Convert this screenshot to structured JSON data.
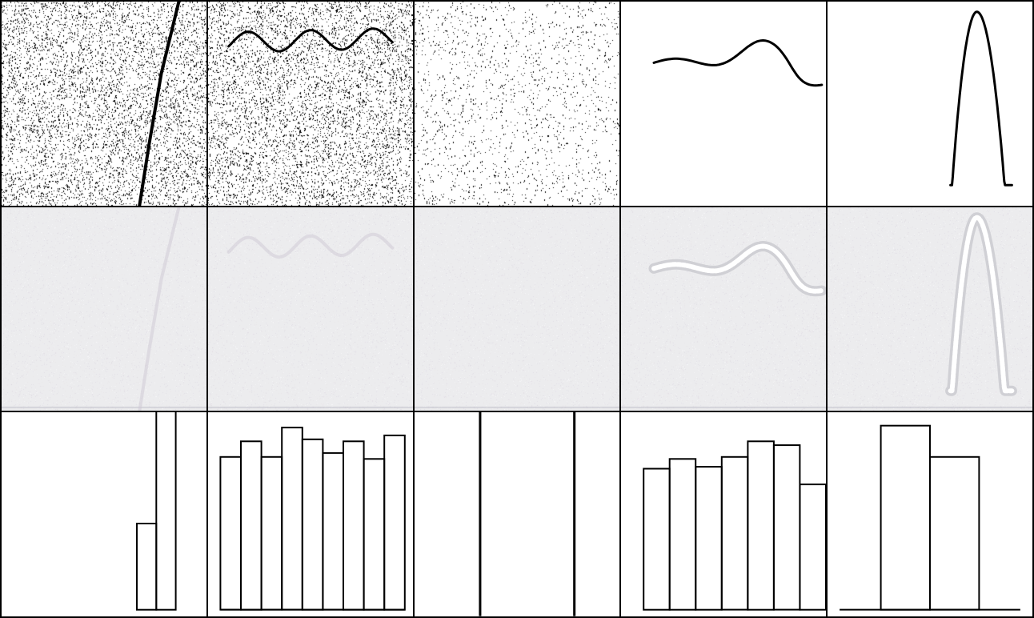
{
  "grid": {
    "rows": 3,
    "cols": 5,
    "row_roles": [
      "noisy-input",
      "reconstruction",
      "histogram"
    ]
  },
  "colors": {
    "border": "#000000",
    "stroke": "#000000",
    "noise_bg": "#ffffff",
    "recon_bg": "#ececee",
    "recon_highlight": "#ffffff",
    "hist_bg": "#ffffff"
  },
  "columns": [
    {
      "noise_level": "high",
      "curve": "steep-diagonal-line",
      "recon_visibility": "very-faint",
      "histogram": {
        "bars": [
          0.44,
          1.0
        ]
      }
    },
    {
      "noise_level": "high",
      "curve": "sine-wave",
      "recon_visibility": "very-faint",
      "histogram": {
        "bars": [
          0.78,
          0.86,
          0.78,
          0.93,
          0.87,
          0.8,
          0.86,
          0.77,
          0.89
        ]
      }
    },
    {
      "noise_level": "medium",
      "curve": "none",
      "recon_visibility": "none",
      "histogram": {
        "bars": [
          1.0,
          0.0,
          0.0,
          0.0,
          1.0
        ]
      }
    },
    {
      "noise_level": "none",
      "curve": "wavy-line",
      "recon_visibility": "visible",
      "histogram": {
        "bars": [
          0.72,
          0.77,
          0.73,
          0.78,
          0.86,
          0.84,
          0.64
        ]
      }
    },
    {
      "noise_level": "none",
      "curve": "inverted-parabola",
      "recon_visibility": "visible",
      "histogram": {
        "bars": [
          0.0,
          0.94,
          0.78,
          0.0
        ]
      }
    }
  ]
}
